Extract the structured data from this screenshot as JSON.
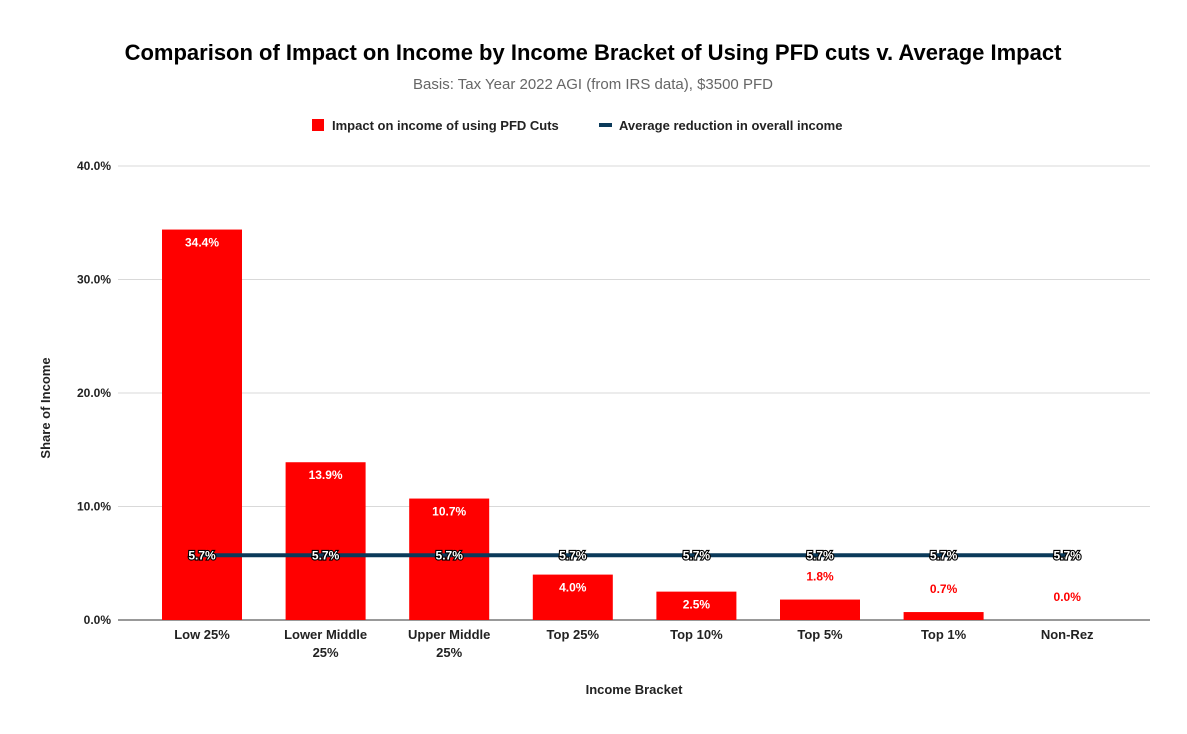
{
  "chart_data": {
    "type": "bar",
    "title": "Comparison of Impact on Income by Income Bracket of Using PFD cuts v. Average Impact",
    "subtitle": "Basis: Tax Year 2022 AGI (from IRS data), $3500 PFD",
    "xlabel": "Income Bracket",
    "ylabel": "Share of Income",
    "ylim": [
      0,
      40
    ],
    "yticks": [
      "0.0%",
      "10.0%",
      "20.0%",
      "30.0%",
      "40.0%"
    ],
    "ytick_values": [
      0,
      10,
      20,
      30,
      40
    ],
    "grid": true,
    "legend_position": "top",
    "categories": [
      [
        "Low 25%"
      ],
      [
        "Lower Middle",
        "25%"
      ],
      [
        "Upper Middle",
        "25%"
      ],
      [
        "Top 25%"
      ],
      [
        "Top 10%"
      ],
      [
        "Top 5%"
      ],
      [
        "Top 1%"
      ],
      [
        "Non-Rez"
      ]
    ],
    "series": [
      {
        "name": "Impact on income of using PFD Cuts",
        "type": "bar",
        "color": "#ff0000",
        "values": [
          34.4,
          13.9,
          10.7,
          4.0,
          2.5,
          1.8,
          0.7,
          0.0
        ],
        "labels": [
          "34.4%",
          "13.9%",
          "10.7%",
          "4.0%",
          "2.5%",
          "1.8%",
          "0.7%",
          "0.0%"
        ]
      },
      {
        "name": "Average reduction in overall income",
        "type": "line",
        "color": "#0b3a5a",
        "values": [
          5.7,
          5.7,
          5.7,
          5.7,
          5.7,
          5.7,
          5.7,
          5.7
        ],
        "labels": [
          "5.7%",
          "5.7%",
          "5.7%",
          "5.7%",
          "5.7%",
          "5.7%",
          "5.7%",
          "5.7%"
        ]
      }
    ]
  }
}
